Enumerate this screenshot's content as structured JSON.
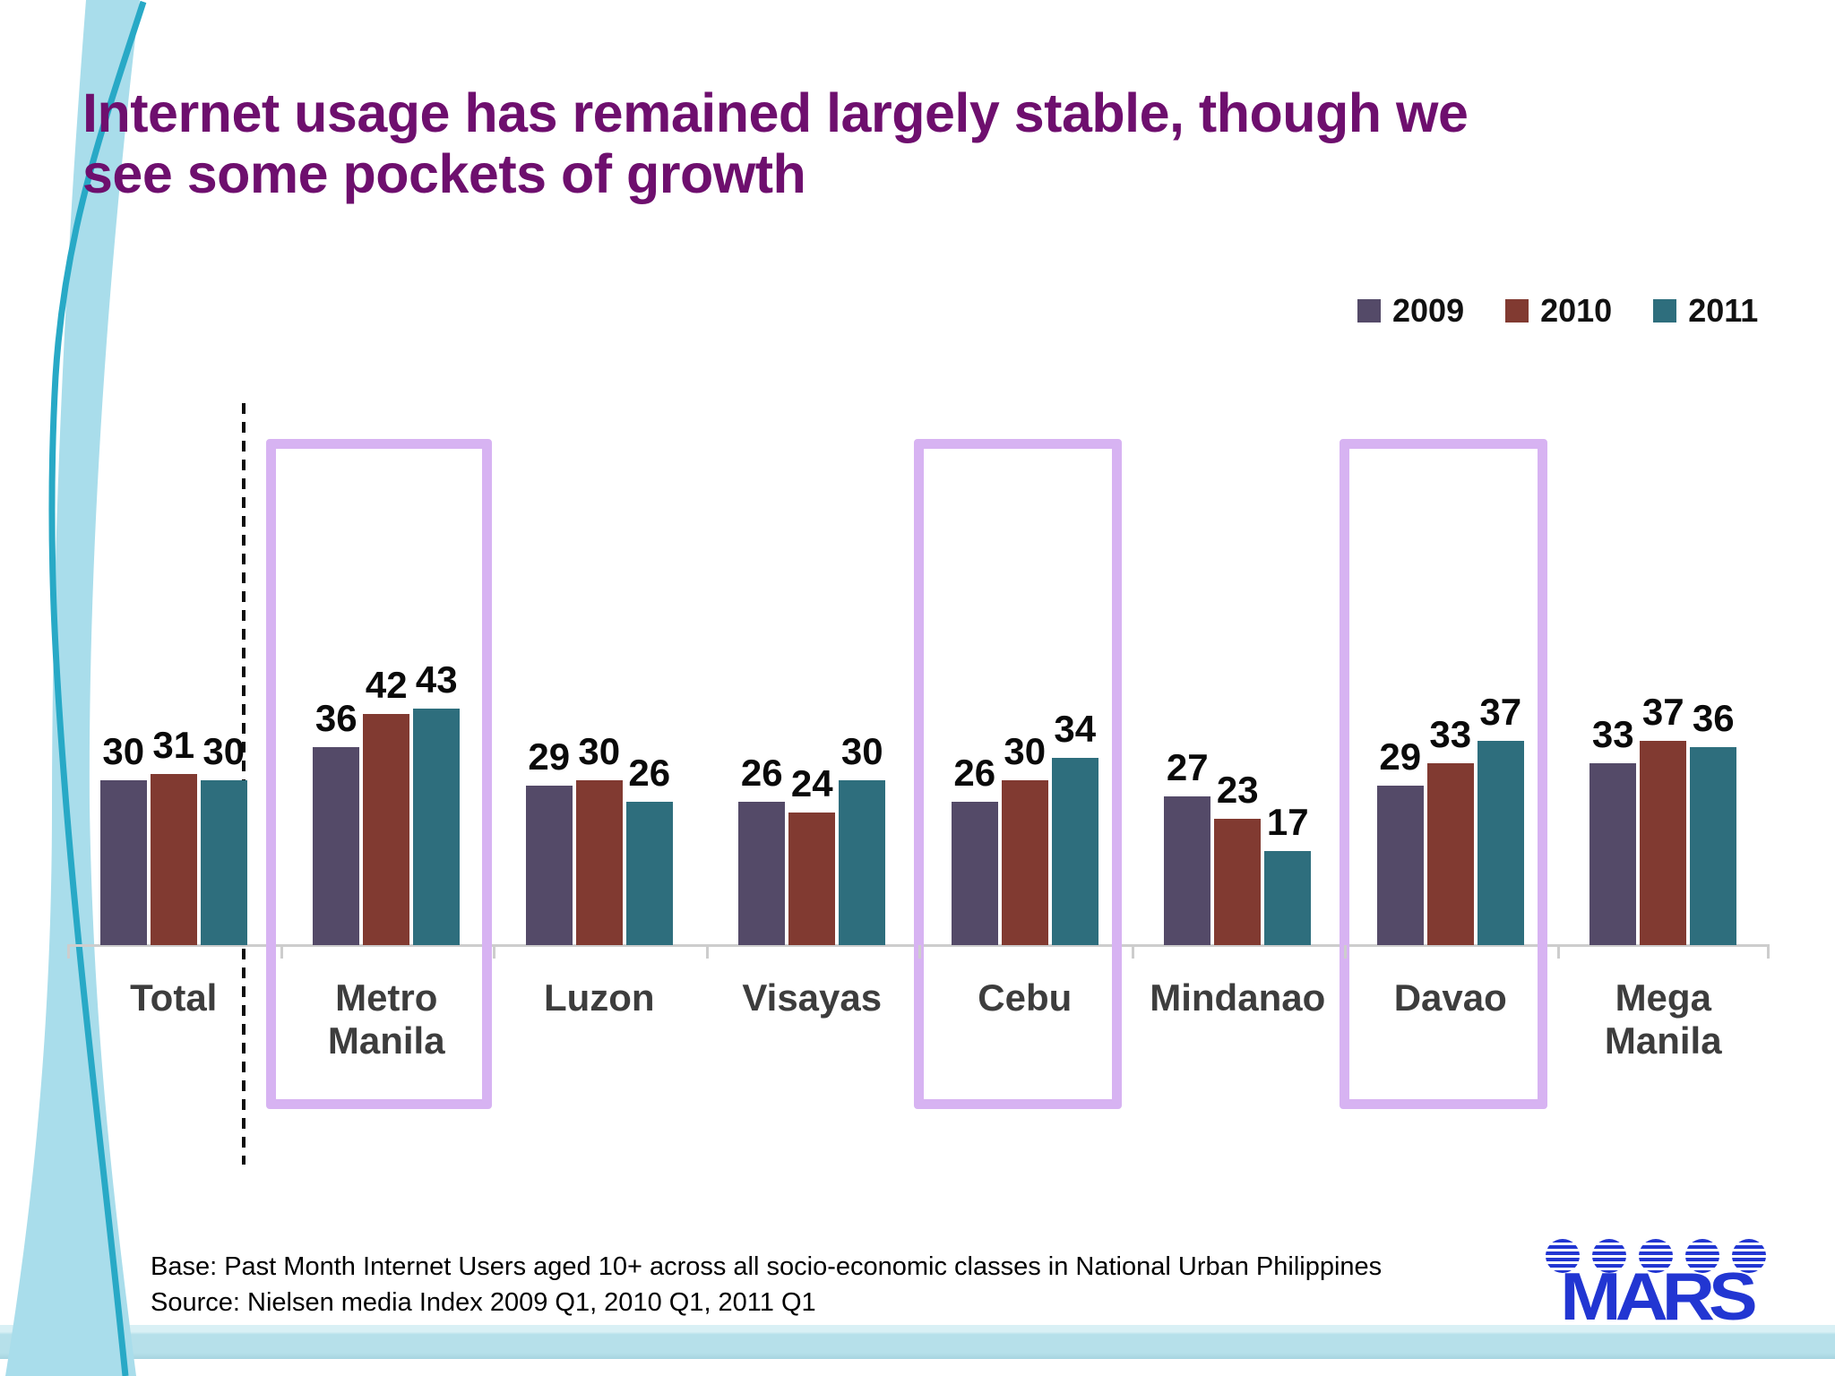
{
  "title": {
    "line1": "Internet usage has remained largely stable, though we",
    "line2": "see some pockets of growth"
  },
  "chart_data": {
    "type": "bar",
    "categories": [
      "Total",
      "Metro Manila",
      "Luzon",
      "Visayas",
      "Cebu",
      "Mindanao",
      "Davao",
      "Mega Manila"
    ],
    "series": [
      {
        "name": "2009",
        "color": "#544a68",
        "values": [
          30,
          36,
          29,
          26,
          26,
          27,
          29,
          33
        ]
      },
      {
        "name": "2010",
        "color": "#813a31",
        "values": [
          31,
          42,
          30,
          24,
          30,
          23,
          33,
          37
        ]
      },
      {
        "name": "2011",
        "color": "#2e6e7d",
        "values": [
          30,
          43,
          26,
          30,
          34,
          17,
          37,
          36
        ]
      }
    ],
    "highlighted_categories": [
      "Metro Manila",
      "Cebu",
      "Davao"
    ],
    "separator_after_category": "Total",
    "value_labels_shown": true,
    "ylim": [
      0,
      45
    ],
    "grid": false,
    "legend_position": "top-right"
  },
  "footer": {
    "base": "Base: Past Month Internet Users aged 10+ across all socio-economic classes in National Urban Philippines",
    "source": "Source: Nielsen media Index 2009 Q1, 2010 Q1, 2011 Q1"
  },
  "logo": {
    "text": "MARS",
    "head_count": 5
  },
  "colors": {
    "title": "#6e0f6e",
    "highlight_border": "#d7b3f2",
    "axis": "#cdcdcd",
    "category_label": "#3d3d3d",
    "swoosh_fill": "#a9ddeb",
    "swoosh_edge": "#28a9c6",
    "bottom_band": "#b6e0ea",
    "logo_blue": "#2236d2"
  }
}
